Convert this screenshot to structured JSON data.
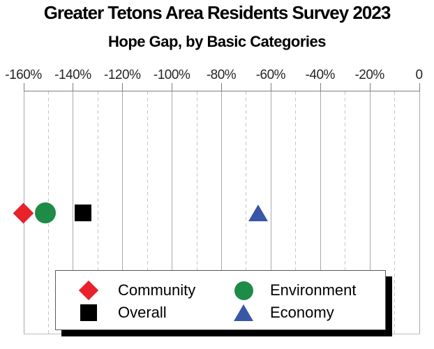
{
  "title": "Greater Tetons Area Residents Survey 2023",
  "subtitle": "Hope Gap, by Basic Categories",
  "axis": {
    "tick_labels": [
      "-160%",
      "-140%",
      "-120%",
      "-100%",
      "-80%",
      "-60%",
      "-40%",
      "-20%",
      "0"
    ],
    "major_tick_values": [
      -160,
      -140,
      -120,
      -100,
      -80,
      -60,
      -40,
      -20,
      0
    ],
    "minor_tick_values": [
      -150,
      -130,
      -110,
      -90,
      -70,
      -50,
      -30,
      -10
    ]
  },
  "legend": {
    "items": [
      {
        "label": "Community",
        "marker": "diamond-icon",
        "color": "#E8212A"
      },
      {
        "label": "Environment",
        "marker": "circle-icon",
        "color": "#1E8B47"
      },
      {
        "label": "Overall",
        "marker": "square-icon",
        "color": "#000000"
      },
      {
        "label": "Economy",
        "marker": "triangle-icon",
        "color": "#3A57A7"
      }
    ]
  },
  "chart_data": {
    "type": "scatter",
    "orientation": "horizontal",
    "title": "Greater Tetons Area Residents Survey 2023",
    "subtitle": "Hope Gap, by Basic Categories",
    "xlabel": "",
    "ylabel": "",
    "xlim": [
      -160,
      0
    ],
    "axis_position": "top",
    "x_ticks_major": [
      -160,
      -140,
      -120,
      -100,
      -80,
      -60,
      -40,
      -20,
      0
    ],
    "x_ticks_minor_dashed": [
      -150,
      -130,
      -110,
      -90,
      -70,
      -50,
      -30,
      -10
    ],
    "grid": "vertical: solid majors, dashed minors",
    "legend_position": "bottom-inside, 2x2, black drop shadow",
    "series": [
      {
        "name": "Community",
        "marker": "diamond",
        "color": "#E8212A",
        "value_pct": -160
      },
      {
        "name": "Environment",
        "marker": "circle",
        "color": "#1E8B47",
        "value_pct": -151
      },
      {
        "name": "Overall",
        "marker": "square",
        "color": "#000000",
        "value_pct": -136
      },
      {
        "name": "Economy",
        "marker": "triangle",
        "color": "#3A57A7",
        "value_pct": -65
      }
    ]
  }
}
